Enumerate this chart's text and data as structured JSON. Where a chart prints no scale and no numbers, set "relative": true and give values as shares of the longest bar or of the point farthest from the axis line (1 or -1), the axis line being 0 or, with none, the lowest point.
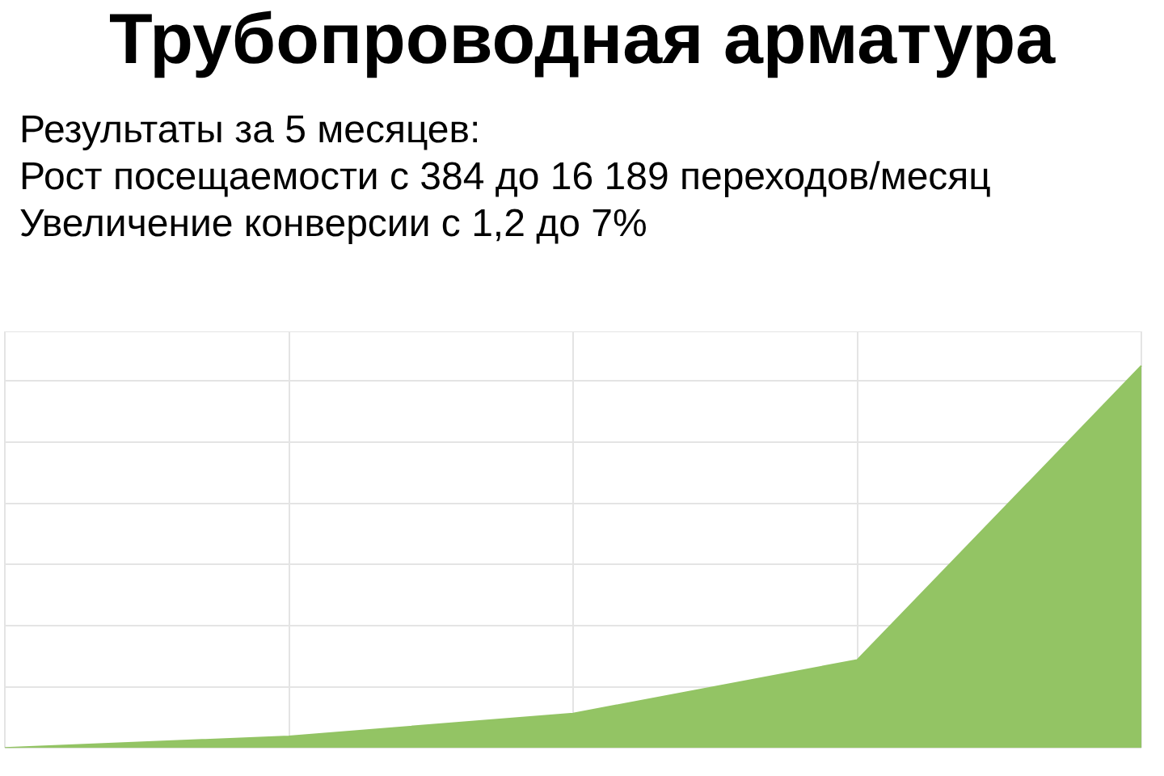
{
  "chart_data": {
    "type": "area",
    "title": "Трубопроводная арматура",
    "subtitle": "Результаты за 5 месяцев:\nРост посещаемости с 384 до 16 189 переходов/месяц\nУвеличение конверсии с 1,2 до 7%",
    "categories": [
      null,
      null,
      null,
      null,
      null
    ],
    "series": [
      {
        "color": "#93c464",
        "values": [
          0,
          0.03,
          0.09,
          0.23,
          1
        ]
      }
    ],
    "relative": true,
    "grid": true,
    "legend": false
  }
}
